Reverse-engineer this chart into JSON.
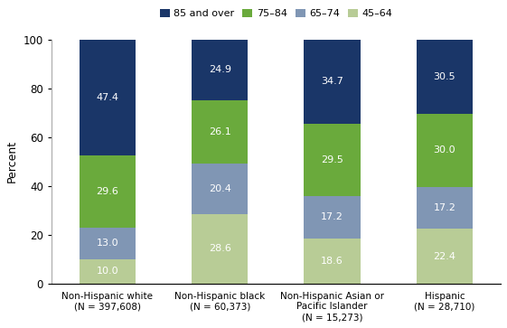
{
  "categories": [
    "Non-Hispanic white\n(N = 397,608)",
    "Non-Hispanic black\n(N = 60,373)",
    "Non-Hispanic Asian or\nPacific Islander\n(N = 15,273)",
    "Hispanic\n(N = 28,710)"
  ],
  "segments": {
    "45-64": [
      10.0,
      28.6,
      18.6,
      22.4
    ],
    "65-74": [
      13.0,
      20.4,
      17.2,
      17.2
    ],
    "75-84": [
      29.6,
      26.1,
      29.5,
      30.0
    ],
    "85 and over": [
      47.4,
      24.9,
      34.7,
      30.5
    ]
  },
  "colors": {
    "45-64": "#b8cc96",
    "65-74": "#8096b4",
    "75-84": "#6aaa3c",
    "85 and over": "#1a3668"
  },
  "legend_labels": [
    "85 and over",
    "75–84",
    "65–74",
    "45–64"
  ],
  "legend_colors": [
    "#1a3668",
    "#6aaa3c",
    "#8096b4",
    "#b8cc96"
  ],
  "ylabel": "Percent",
  "ylim": [
    0,
    100
  ],
  "yticks": [
    0,
    20,
    40,
    60,
    80,
    100
  ],
  "bar_width": 0.5,
  "figsize": [
    5.61,
    3.63
  ],
  "dpi": 100,
  "label_color": "white",
  "label_fontsize": 8.0,
  "background_color": "#ffffff"
}
